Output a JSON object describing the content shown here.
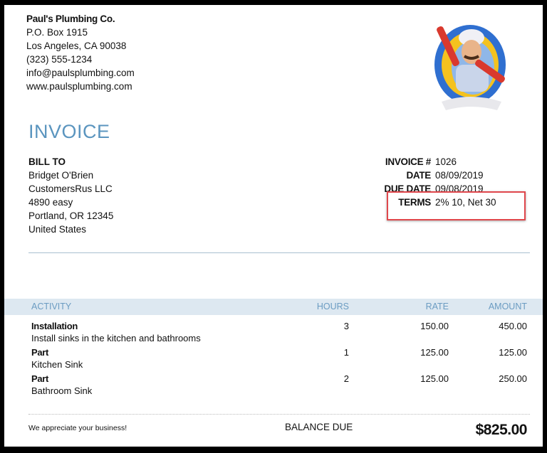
{
  "company": {
    "name": "Paul's Plumbing Co.",
    "address1": "P.O. Box 1915",
    "address2": "Los Angeles, CA  90038",
    "phone": "(323) 555-1234",
    "email": "info@paulsplumbing.com",
    "website": "www.paulsplumbing.com",
    "logo_icon": "plumber-mascot-logo"
  },
  "title": "INVOICE",
  "bill_to": {
    "heading": "BILL TO",
    "name": "Bridget O'Brien",
    "company": "CustomersRus LLC",
    "street": "4890 easy",
    "city": "Portland, OR  12345",
    "country": "United States"
  },
  "meta": [
    {
      "label": "INVOICE #",
      "value": "1026"
    },
    {
      "label": "DATE",
      "value": "08/09/2019"
    },
    {
      "label": "DUE DATE",
      "value": "09/08/2019"
    },
    {
      "label": "TERMS",
      "value": "2% 10, Net 30"
    }
  ],
  "highlight_color": "#e0474c",
  "table": {
    "headers": {
      "activity": "ACTIVITY",
      "hours": "HOURS",
      "rate": "RATE",
      "amount": "AMOUNT"
    },
    "rows": [
      {
        "name": "Installation",
        "desc": "Install sinks in the kitchen and bathrooms",
        "hours": "3",
        "rate": "150.00",
        "amount": "450.00"
      },
      {
        "name": "Part",
        "desc": "Kitchen Sink",
        "hours": "1",
        "rate": "125.00",
        "amount": "125.00"
      },
      {
        "name": "Part",
        "desc": "Bathroom Sink",
        "hours": "2",
        "rate": "125.00",
        "amount": "250.00"
      }
    ]
  },
  "footer": {
    "thanks": "We appreciate your business!",
    "balance_label": "BALANCE DUE",
    "balance_value": "$825.00"
  }
}
